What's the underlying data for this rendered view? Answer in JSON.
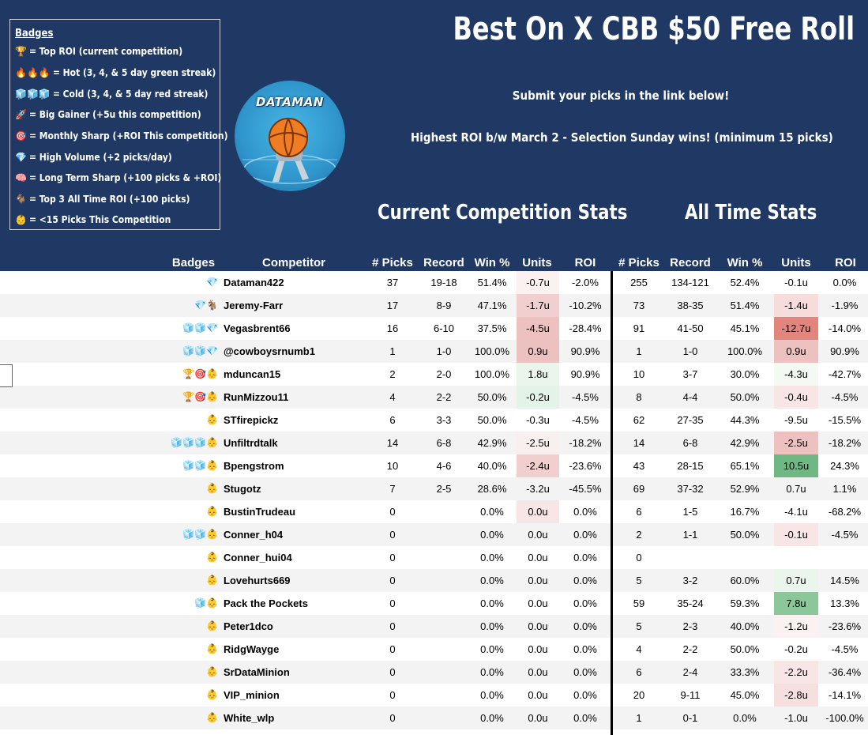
{
  "title": "Best On X CBB $50 Free Roll",
  "subtitle1": "Submit your picks in the link below!",
  "subtitle2": "Highest ROI b/w March 2 - Selection Sunday wins! (minimum 15 picks)",
  "logo_text": "DATAMAN",
  "section_current": "Current Competition Stats",
  "section_alltime": "All Time Stats",
  "legend": {
    "title": "Badges",
    "items": [
      {
        "icons": "🏆",
        "text": "= Top ROI (current competition)"
      },
      {
        "icons": "🔥🔥🔥",
        "text": "= Hot (3, 4, & 5 day green streak)"
      },
      {
        "icons": "🧊🧊🧊",
        "text": "= Cold (3, 4, & 5 day red streak)"
      },
      {
        "icons": "🚀",
        "text": "= Big Gainer (+5u this competition)"
      },
      {
        "icons": "🎯",
        "text": "= Monthly Sharp (+ROI This competition)"
      },
      {
        "icons": "💎",
        "text": "= High Volume (+2 picks/day)"
      },
      {
        "icons": "🧠",
        "text": "= Long Term Sharp (+100 picks & +ROI)"
      },
      {
        "icons": "🐐",
        "text": "= Top 3 All Time ROI (+100 picks)"
      },
      {
        "icons": "👶",
        "text": "= <15 Picks This Competition"
      }
    ]
  },
  "headers": {
    "badges": "Badges",
    "competitor": "Competitor",
    "c_picks": "# Picks",
    "c_record": "Record",
    "c_win": "Win %",
    "c_units": "Units",
    "c_roi": "ROI",
    "a_picks": "# Picks",
    "a_record": "Record",
    "a_win": "Win %",
    "a_units": "Units",
    "a_roi": "ROI"
  },
  "colors": {
    "header_bg": "#1f3864",
    "neg_light": "#f8e6e6",
    "neg_med": "#f1cfcf",
    "neg_strong": "#ecc1c0",
    "neg_deep": "#e2857c",
    "pos_light": "#eaf5ec",
    "pos_strong": "#8cc79a",
    "pos_deep": "#6fb883"
  },
  "rows": [
    {
      "badges": "💎",
      "name": "Dataman422",
      "c_picks": "37",
      "c_record": "19-18",
      "c_win": "51.4%",
      "c_units": "-0.7u",
      "c_units_bg": "#fbf1f1",
      "c_roi": "-2.0%",
      "a_picks": "255",
      "a_record": "134-121",
      "a_win": "52.4%",
      "a_units": "-0.1u",
      "a_units_bg": "#ffffff",
      "a_roi": "0.0%"
    },
    {
      "badges": "💎🐐",
      "name": "Jeremy-Farr",
      "c_picks": "17",
      "c_record": "8-9",
      "c_win": "47.1%",
      "c_units": "-1.7u",
      "c_units_bg": "#f1cfcf",
      "c_roi": "-10.2%",
      "a_picks": "73",
      "a_record": "38-35",
      "a_win": "51.4%",
      "a_units": "-1.4u",
      "a_units_bg": "#f6dcdb",
      "a_roi": "-1.9%"
    },
    {
      "badges": "🧊🧊💎",
      "name": "Vegasbrent66",
      "c_picks": "16",
      "c_record": "6-10",
      "c_win": "37.5%",
      "c_units": "-4.5u",
      "c_units_bg": "#ecc1c0",
      "c_roi": "-28.4%",
      "a_picks": "91",
      "a_record": "41-50",
      "a_win": "45.1%",
      "a_units": "-12.7u",
      "a_units_bg": "#e2857c",
      "a_roi": "-14.0%"
    },
    {
      "badges": "🧊🧊💎",
      "name": "@cowboysrnumb1",
      "c_picks": "1",
      "c_record": "1-0",
      "c_win": "100.0%",
      "c_units": "0.9u",
      "c_units_bg": "#ecc1c0",
      "c_roi": "90.9%",
      "a_picks": "1",
      "a_record": "1-0",
      "a_win": "100.0%",
      "a_units": "0.9u",
      "a_units_bg": "#ecc1c0",
      "a_roi": "90.9%"
    },
    {
      "badges": "🏆🎯👶",
      "name": "mduncan15",
      "c_picks": "2",
      "c_record": "2-0",
      "c_win": "100.0%",
      "c_units": "1.8u",
      "c_units_bg": "#eaf5ec",
      "c_roi": "90.9%",
      "a_picks": "10",
      "a_record": "3-7",
      "a_win": "30.0%",
      "a_units": "-4.3u",
      "a_units_bg": "#f4f9f4",
      "a_roi": "-42.7%"
    },
    {
      "badges": "🏆🎯👶",
      "name": "RunMizzou11",
      "c_picks": "4",
      "c_record": "2-2",
      "c_win": "50.0%",
      "c_units": "-0.2u",
      "c_units_bg": "#e4f3e7",
      "c_roi": "-4.5%",
      "a_picks": "8",
      "a_record": "4-4",
      "a_win": "50.0%",
      "a_units": "-0.4u",
      "a_units_bg": "#f8e6e6",
      "a_roi": "-4.5%"
    },
    {
      "badges": "👶",
      "name": "STfirepickz",
      "c_picks": "6",
      "c_record": "3-3",
      "c_win": "50.0%",
      "c_units": "-0.3u",
      "c_units_bg": "#ffffff",
      "c_roi": "-4.5%",
      "a_picks": "62",
      "a_record": "27-35",
      "a_win": "44.3%",
      "a_units": "-9.5u",
      "a_units_bg": "#ffffff",
      "a_roi": "-15.5%"
    },
    {
      "badges": "🧊🧊🧊👶",
      "name": "Unfiltrdtalk",
      "c_picks": "14",
      "c_record": "6-8",
      "c_win": "42.9%",
      "c_units": "-2.5u",
      "c_units_bg": "#f8efef",
      "c_roi": "-18.2%",
      "a_picks": "14",
      "a_record": "6-8",
      "a_win": "42.9%",
      "a_units": "-2.5u",
      "a_units_bg": "#ecc1c0",
      "a_roi": "-18.2%"
    },
    {
      "badges": "🧊🧊👶",
      "name": "Bpengstrom",
      "c_picks": "10",
      "c_record": "4-6",
      "c_win": "40.0%",
      "c_units": "-2.4u",
      "c_units_bg": "#f1cfcf",
      "c_roi": "-23.6%",
      "a_picks": "43",
      "a_record": "28-15",
      "a_win": "65.1%",
      "a_units": "10.5u",
      "a_units_bg": "#6fb883",
      "a_roi": "24.3%"
    },
    {
      "badges": "👶",
      "name": "Stugotz",
      "c_picks": "7",
      "c_record": "2-5",
      "c_win": "28.6%",
      "c_units": "-3.2u",
      "c_units_bg": "#ffffff",
      "c_roi": "-45.5%",
      "a_picks": "69",
      "a_record": "37-32",
      "a_win": "52.9%",
      "a_units": "0.7u",
      "a_units_bg": "#ffffff",
      "a_roi": "1.1%"
    },
    {
      "badges": "👶",
      "name": "BustinTrudeau",
      "c_picks": "0",
      "c_record": "",
      "c_win": "0.0%",
      "c_units": "0.0u",
      "c_units_bg": "#f8e6e6",
      "c_roi": "0.0%",
      "a_picks": "6",
      "a_record": "1-5",
      "a_win": "16.7%",
      "a_units": "-4.1u",
      "a_units_bg": "#ffffff",
      "a_roi": "-68.2%"
    },
    {
      "badges": "🧊🧊👶",
      "name": "Conner_h04",
      "c_picks": "0",
      "c_record": "",
      "c_win": "0.0%",
      "c_units": "0.0u",
      "c_units_bg": "#ffffff",
      "c_roi": "0.0%",
      "a_picks": "2",
      "a_record": "1-1",
      "a_win": "50.0%",
      "a_units": "-0.1u",
      "a_units_bg": "#f8e6e6",
      "a_roi": "-4.5%"
    },
    {
      "badges": "👶",
      "name": "Conner_hui04",
      "c_picks": "0",
      "c_record": "",
      "c_win": "0.0%",
      "c_units": "0.0u",
      "c_units_bg": "#ffffff",
      "c_roi": "0.0%",
      "a_picks": "0",
      "a_record": "",
      "a_win": "",
      "a_units": "",
      "a_units_bg": "#ffffff",
      "a_roi": ""
    },
    {
      "badges": "👶",
      "name": "Lovehurts669",
      "c_picks": "0",
      "c_record": "",
      "c_win": "0.0%",
      "c_units": "0.0u",
      "c_units_bg": "#ffffff",
      "c_roi": "0.0%",
      "a_picks": "5",
      "a_record": "3-2",
      "a_win": "60.0%",
      "a_units": "0.7u",
      "a_units_bg": "#eaf5ec",
      "a_roi": "14.5%"
    },
    {
      "badges": "🧊👶",
      "name": "Pack the Pockets",
      "c_picks": "0",
      "c_record": "",
      "c_win": "0.0%",
      "c_units": "0.0u",
      "c_units_bg": "#ffffff",
      "c_roi": "0.0%",
      "a_picks": "59",
      "a_record": "35-24",
      "a_win": "59.3%",
      "a_units": "7.8u",
      "a_units_bg": "#8cc79a",
      "a_roi": "13.3%"
    },
    {
      "badges": "👶",
      "name": "Peter1dco",
      "c_picks": "0",
      "c_record": "",
      "c_win": "0.0%",
      "c_units": "0.0u",
      "c_units_bg": "#ffffff",
      "c_roi": "0.0%",
      "a_picks": "5",
      "a_record": "2-3",
      "a_win": "40.0%",
      "a_units": "-1.2u",
      "a_units_bg": "#fbf1f1",
      "a_roi": "-23.6%"
    },
    {
      "badges": "👶",
      "name": "RidgWayge",
      "c_picks": "0",
      "c_record": "",
      "c_win": "0.0%",
      "c_units": "0.0u",
      "c_units_bg": "#ffffff",
      "c_roi": "0.0%",
      "a_picks": "4",
      "a_record": "2-2",
      "a_win": "50.0%",
      "a_units": "-0.2u",
      "a_units_bg": "#ffffff",
      "a_roi": "-4.5%"
    },
    {
      "badges": "👶",
      "name": "SrDataMinion",
      "c_picks": "0",
      "c_record": "",
      "c_win": "0.0%",
      "c_units": "0.0u",
      "c_units_bg": "#ffffff",
      "c_roi": "0.0%",
      "a_picks": "6",
      "a_record": "2-4",
      "a_win": "33.3%",
      "a_units": "-2.2u",
      "a_units_bg": "#f8e6e6",
      "a_roi": "-36.4%"
    },
    {
      "badges": "👶",
      "name": "VIP_minion",
      "c_picks": "0",
      "c_record": "",
      "c_win": "0.0%",
      "c_units": "0.0u",
      "c_units_bg": "#ffffff",
      "c_roi": "0.0%",
      "a_picks": "20",
      "a_record": "9-11",
      "a_win": "45.0%",
      "a_units": "-2.8u",
      "a_units_bg": "#f6e0df",
      "a_roi": "-14.1%"
    },
    {
      "badges": "👶",
      "name": "White_wlp",
      "c_picks": "0",
      "c_record": "",
      "c_win": "0.0%",
      "c_units": "0.0u",
      "c_units_bg": "#ffffff",
      "c_roi": "0.0%",
      "a_picks": "1",
      "a_record": "0-1",
      "a_win": "0.0%",
      "a_units": "-1.0u",
      "a_units_bg": "#ffffff",
      "a_roi": "-100.0%"
    }
  ]
}
